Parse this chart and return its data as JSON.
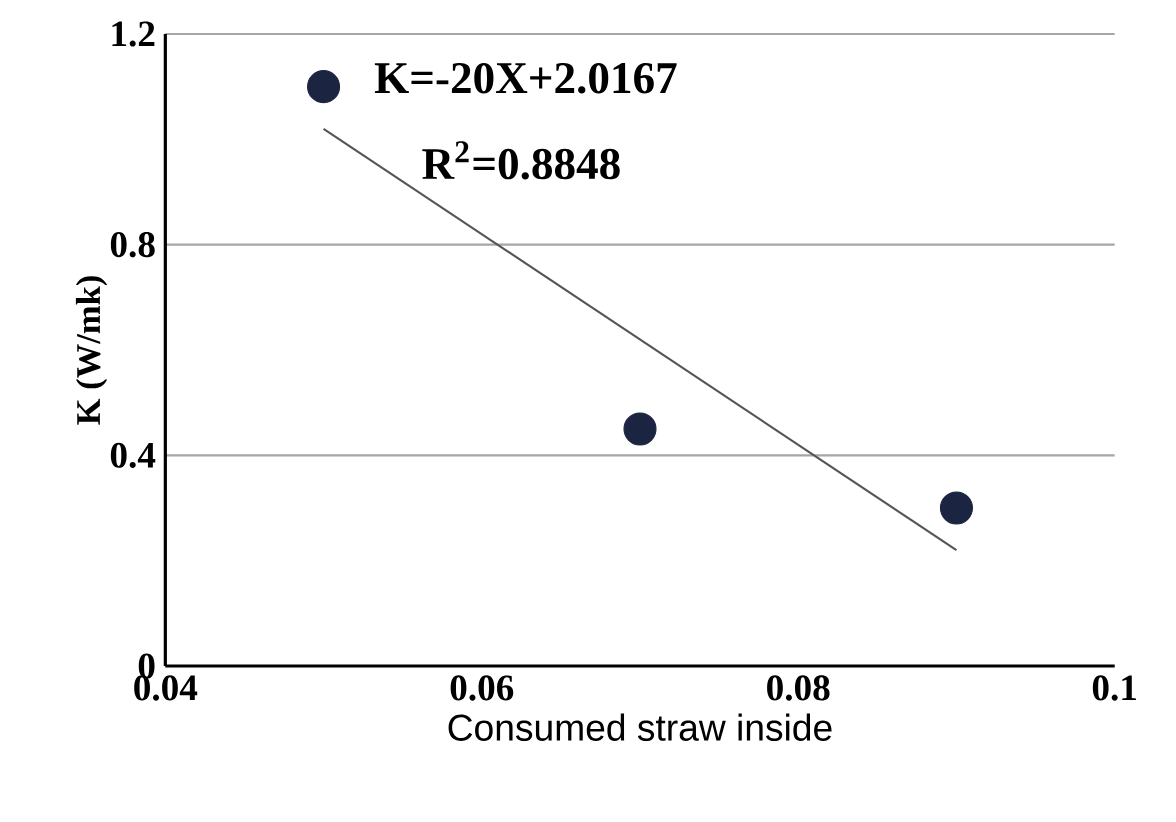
{
  "chart_data": {
    "type": "scatter",
    "xlabel": "Consumed straw inside",
    "ylabel": "K (W/mk)",
    "xlim": [
      0.04,
      0.1
    ],
    "xticks": [
      0.04,
      0.06,
      0.08,
      0.1
    ],
    "ylim": [
      0,
      1.2
    ],
    "yticks": [
      0,
      0.4,
      0.8,
      1.2
    ],
    "grid": "y",
    "marker": "circle",
    "series": [
      {
        "color": "#1b2541",
        "x": [
          0.05,
          0.07,
          0.09
        ],
        "values": [
          1.1,
          0.45,
          0.3
        ]
      },
      {
        "type": "line",
        "color": "#555555",
        "marker": "none",
        "x": [
          0.05,
          0.09
        ],
        "values": [
          1.02,
          0.22
        ]
      }
    ],
    "annotations": [
      "K=-20X+2.0167",
      "R$^{2}$=0.8848"
    ]
  }
}
